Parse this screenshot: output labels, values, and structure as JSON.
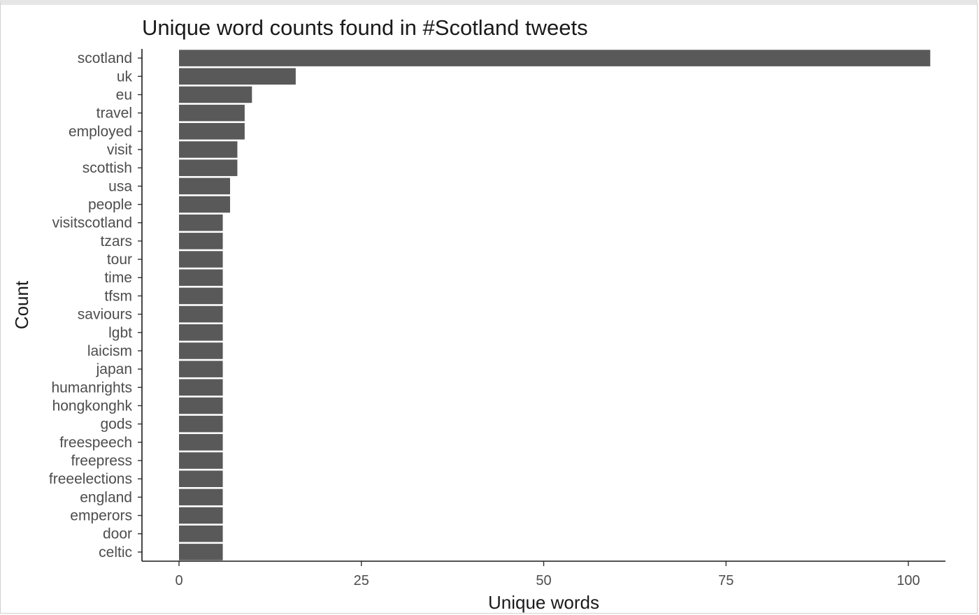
{
  "chart_data": {
    "type": "bar",
    "orientation": "horizontal",
    "title": "Unique word counts found in #Scotland tweets",
    "xlabel": "Unique words",
    "ylabel": "Count",
    "xlim": [
      0,
      103
    ],
    "xticks": [
      0,
      25,
      50,
      75,
      100
    ],
    "grid": false,
    "bar_color": "#595959",
    "categories": [
      "scotland",
      "uk",
      "eu",
      "travel",
      "employed",
      "visit",
      "scottish",
      "usa",
      "people",
      "visitscotland",
      "tzars",
      "tour",
      "time",
      "tfsm",
      "saviours",
      "lgbt",
      "laicism",
      "japan",
      "humanrights",
      "hongkonghk",
      "gods",
      "freespeech",
      "freepress",
      "freeelections",
      "england",
      "emperors",
      "door",
      "celtic"
    ],
    "values": [
      103,
      16,
      10,
      9,
      9,
      8,
      8,
      7,
      7,
      6,
      6,
      6,
      6,
      6,
      6,
      6,
      6,
      6,
      6,
      6,
      6,
      6,
      6,
      6,
      6,
      6,
      6,
      6
    ]
  }
}
